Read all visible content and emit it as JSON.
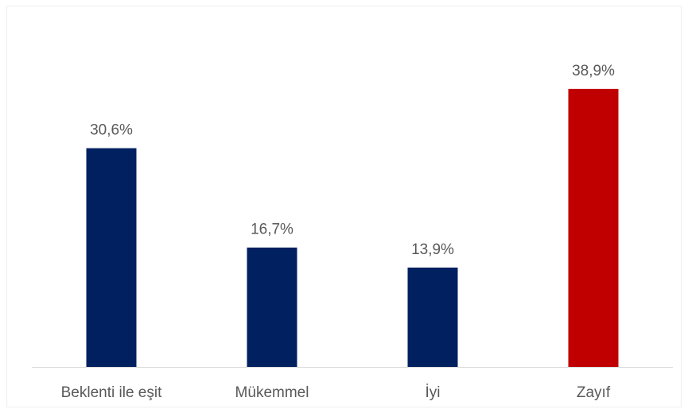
{
  "chart_data": {
    "type": "bar",
    "categories": [
      "Beklenti ile eşit",
      "Mükemmel",
      "İyi",
      "Zayıf"
    ],
    "values": [
      30.6,
      16.7,
      13.9,
      38.9
    ],
    "value_labels": [
      "30,6%",
      "16,7%",
      "13,9%",
      "38,9%"
    ],
    "unit": "%",
    "ylim": [
      0,
      40
    ],
    "grid": false,
    "legend": "none",
    "colors": [
      "#002060",
      "#002060",
      "#002060",
      "#C00000"
    ],
    "baseline_color": "#d9d9d9"
  }
}
